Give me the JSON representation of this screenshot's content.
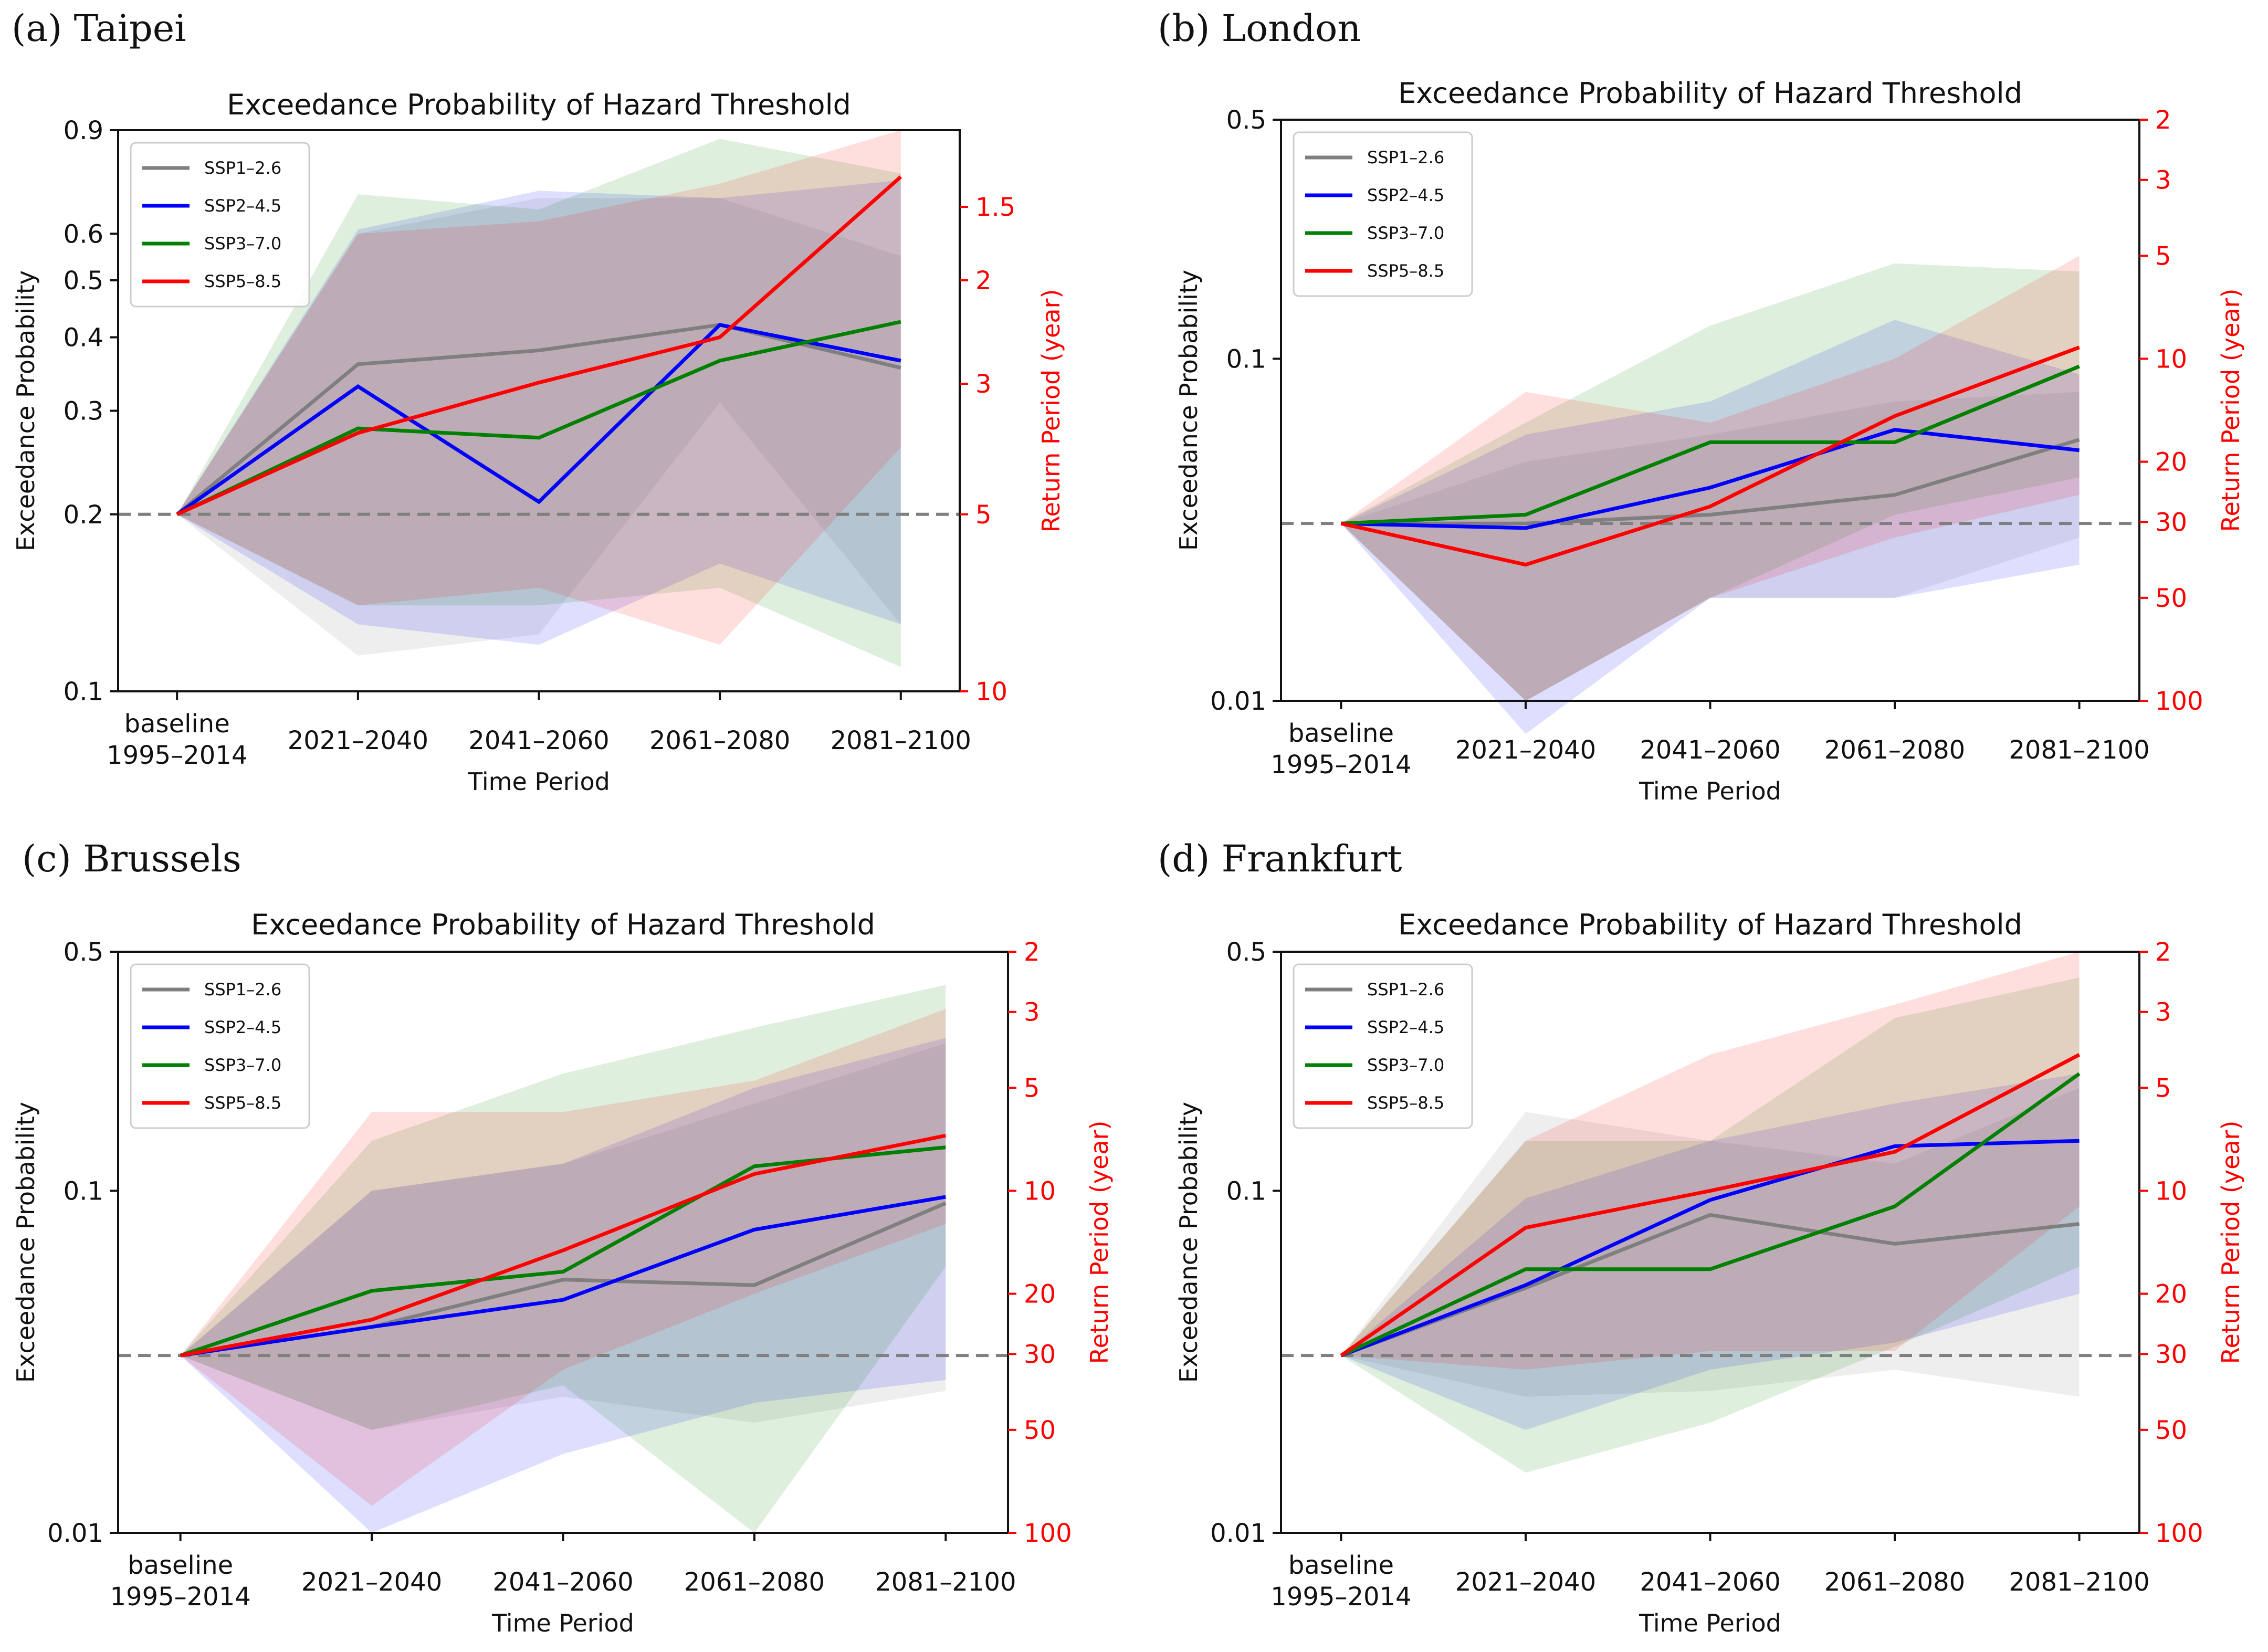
{
  "figure_caption": "",
  "colors": {
    "SSP1–2.6": "#7f7f7f",
    "SSP2–4.5": "#0000ff",
    "SSP3–7.0": "#008000",
    "SSP5–8.5": "#ff0000",
    "baseline_line": "#7f7f7f",
    "right_axis": "#ff0000"
  },
  "chart_data": [
    {
      "panel_label": "(a) Taipei",
      "type": "line",
      "title": "Exceedance Probability of Hazard Threshold",
      "xlabel": "Time Period",
      "ylabel": "Exceedance Probability",
      "y2label": "Return Period (year)",
      "yscale": "log",
      "ylim": [
        0.1,
        0.9
      ],
      "yticks": [
        0.1,
        0.2,
        0.3,
        0.4,
        0.5,
        0.6,
        0.9
      ],
      "y2ticks": [
        10,
        5,
        3,
        2,
        1.5
      ],
      "categories": [
        "baseline\n1995–2014",
        "2021–2040",
        "2041–2060",
        "2061–2080",
        "2081–2100"
      ],
      "baseline_value": 0.2,
      "legend_position": "top-left",
      "series": [
        {
          "name": "SSP1–2.6",
          "values": [
            0.2,
            0.36,
            0.38,
            0.42,
            0.355
          ],
          "lower": [
            0.2,
            0.115,
            0.125,
            0.31,
            0.13
          ],
          "upper": [
            0.2,
            0.6,
            0.69,
            0.69,
            0.55
          ]
        },
        {
          "name": "SSP2–4.5",
          "values": [
            0.2,
            0.33,
            0.21,
            0.42,
            0.365
          ],
          "lower": [
            0.2,
            0.13,
            0.12,
            0.165,
            0.13
          ],
          "upper": [
            0.2,
            0.61,
            0.71,
            0.69,
            0.74
          ]
        },
        {
          "name": "SSP3–7.0",
          "values": [
            0.2,
            0.28,
            0.27,
            0.365,
            0.425
          ],
          "lower": [
            0.2,
            0.14,
            0.14,
            0.15,
            0.11
          ],
          "upper": [
            0.2,
            0.7,
            0.66,
            0.87,
            0.76
          ]
        },
        {
          "name": "SSP5–8.5",
          "values": [
            0.2,
            0.275,
            0.335,
            0.4,
            0.75
          ],
          "lower": [
            0.2,
            0.14,
            0.15,
            0.12,
            0.26
          ],
          "upper": [
            0.2,
            0.6,
            0.63,
            0.73,
            0.9
          ]
        }
      ]
    },
    {
      "panel_label": "(b) London",
      "type": "line",
      "title": "Exceedance Probability of Hazard Threshold",
      "xlabel": "Time Period",
      "ylabel": "Exceedance Probability",
      "y2label": "Return Period (year)",
      "yscale": "log",
      "ylim": [
        0.01,
        0.5
      ],
      "yticks": [
        0.01,
        0.1,
        0.5
      ],
      "y2ticks": [
        100,
        50,
        30,
        20,
        10,
        5,
        3,
        2
      ],
      "categories": [
        "baseline\n1995–2014",
        "2021–2040",
        "2041–2060",
        "2061–2080",
        "2081–2100"
      ],
      "baseline_value": 0.033,
      "legend_position": "top-left",
      "series": [
        {
          "name": "SSP1–2.6",
          "values": [
            0.033,
            0.033,
            0.035,
            0.04,
            0.058
          ],
          "lower": [
            0.033,
            0.01,
            0.02,
            0.02,
            0.03
          ],
          "upper": [
            0.033,
            0.05,
            0.06,
            0.075,
            0.08
          ]
        },
        {
          "name": "SSP2–4.5",
          "values": [
            0.033,
            0.032,
            0.042,
            0.062,
            0.054
          ],
          "lower": [
            0.033,
            0.008,
            0.02,
            0.02,
            0.025
          ],
          "upper": [
            0.033,
            0.06,
            0.075,
            0.13,
            0.09
          ]
        },
        {
          "name": "SSP3–7.0",
          "values": [
            0.033,
            0.035,
            0.057,
            0.057,
            0.095
          ],
          "lower": [
            0.033,
            0.01,
            0.02,
            0.035,
            0.045
          ],
          "upper": [
            0.033,
            0.065,
            0.125,
            0.19,
            0.18
          ]
        },
        {
          "name": "SSP5–8.5",
          "values": [
            0.033,
            0.025,
            0.037,
            0.068,
            0.108
          ],
          "lower": [
            0.033,
            0.01,
            0.02,
            0.03,
            0.04
          ],
          "upper": [
            0.033,
            0.08,
            0.065,
            0.1,
            0.2
          ]
        }
      ]
    },
    {
      "panel_label": "(c) Brussels",
      "type": "line",
      "title": "Exceedance Probability of Hazard Threshold",
      "xlabel": "Time Period",
      "ylabel": "Exceedance Probability",
      "y2label": "Return Period (year)",
      "yscale": "log",
      "ylim": [
        0.01,
        0.5
      ],
      "yticks": [
        0.01,
        0.1,
        0.5
      ],
      "y2ticks": [
        100,
        50,
        30,
        20,
        10,
        5,
        3,
        2
      ],
      "categories": [
        "baseline\n1995–2014",
        "2021–2040",
        "2041–2060",
        "2061–2080",
        "2081–2100"
      ],
      "baseline_value": 0.033,
      "legend_position": "top-left",
      "series": [
        {
          "name": "SSP1–2.6",
          "values": [
            0.033,
            0.04,
            0.055,
            0.053,
            0.092
          ],
          "lower": [
            0.033,
            0.02,
            0.025,
            0.021,
            0.026
          ],
          "upper": [
            0.033,
            0.1,
            0.12,
            0.18,
            0.27
          ]
        },
        {
          "name": "SSP2–4.5",
          "values": [
            0.033,
            0.04,
            0.048,
            0.077,
            0.096
          ],
          "lower": [
            0.033,
            0.01,
            0.017,
            0.024,
            0.028
          ],
          "upper": [
            0.033,
            0.1,
            0.12,
            0.2,
            0.28
          ]
        },
        {
          "name": "SSP3–7.0",
          "values": [
            0.033,
            0.051,
            0.058,
            0.118,
            0.134
          ],
          "lower": [
            0.033,
            0.02,
            0.027,
            0.01,
            0.06
          ],
          "upper": [
            0.033,
            0.14,
            0.22,
            0.3,
            0.4
          ]
        },
        {
          "name": "SSP5–8.5",
          "values": [
            0.033,
            0.042,
            0.067,
            0.112,
            0.145
          ],
          "lower": [
            0.033,
            0.012,
            0.03,
            0.05,
            0.08
          ],
          "upper": [
            0.033,
            0.17,
            0.17,
            0.21,
            0.34
          ]
        }
      ]
    },
    {
      "panel_label": "(d) Frankfurt",
      "type": "line",
      "title": "Exceedance Probability of Hazard Threshold",
      "xlabel": "Time Period",
      "ylabel": "Exceedance Probability",
      "y2label": "Return Period (year)",
      "yscale": "log",
      "ylim": [
        0.01,
        0.5
      ],
      "yticks": [
        0.01,
        0.1,
        0.5
      ],
      "y2ticks": [
        100,
        50,
        30,
        20,
        10,
        5,
        3,
        2
      ],
      "categories": [
        "baseline\n1995–2014",
        "2021–2040",
        "2041–2060",
        "2061–2080",
        "2081–2100"
      ],
      "baseline_value": 0.033,
      "legend_position": "top-left",
      "series": [
        {
          "name": "SSP1–2.6",
          "values": [
            0.033,
            0.052,
            0.085,
            0.07,
            0.08
          ],
          "lower": [
            0.033,
            0.025,
            0.026,
            0.03,
            0.025
          ],
          "upper": [
            0.033,
            0.17,
            0.14,
            0.12,
            0.2
          ]
        },
        {
          "name": "SSP2–4.5",
          "values": [
            0.033,
            0.053,
            0.094,
            0.135,
            0.14
          ],
          "lower": [
            0.033,
            0.02,
            0.03,
            0.036,
            0.05
          ],
          "upper": [
            0.033,
            0.095,
            0.14,
            0.18,
            0.22
          ]
        },
        {
          "name": "SSP3–7.0",
          "values": [
            0.033,
            0.059,
            0.059,
            0.09,
            0.22
          ],
          "lower": [
            0.033,
            0.015,
            0.021,
            0.035,
            0.06
          ],
          "upper": [
            0.033,
            0.14,
            0.14,
            0.32,
            0.42
          ]
        },
        {
          "name": "SSP5–8.5",
          "values": [
            0.033,
            0.078,
            0.1,
            0.13,
            0.25
          ],
          "lower": [
            0.033,
            0.03,
            0.034,
            0.034,
            0.09
          ],
          "upper": [
            0.033,
            0.14,
            0.25,
            0.35,
            0.5
          ]
        }
      ]
    }
  ]
}
